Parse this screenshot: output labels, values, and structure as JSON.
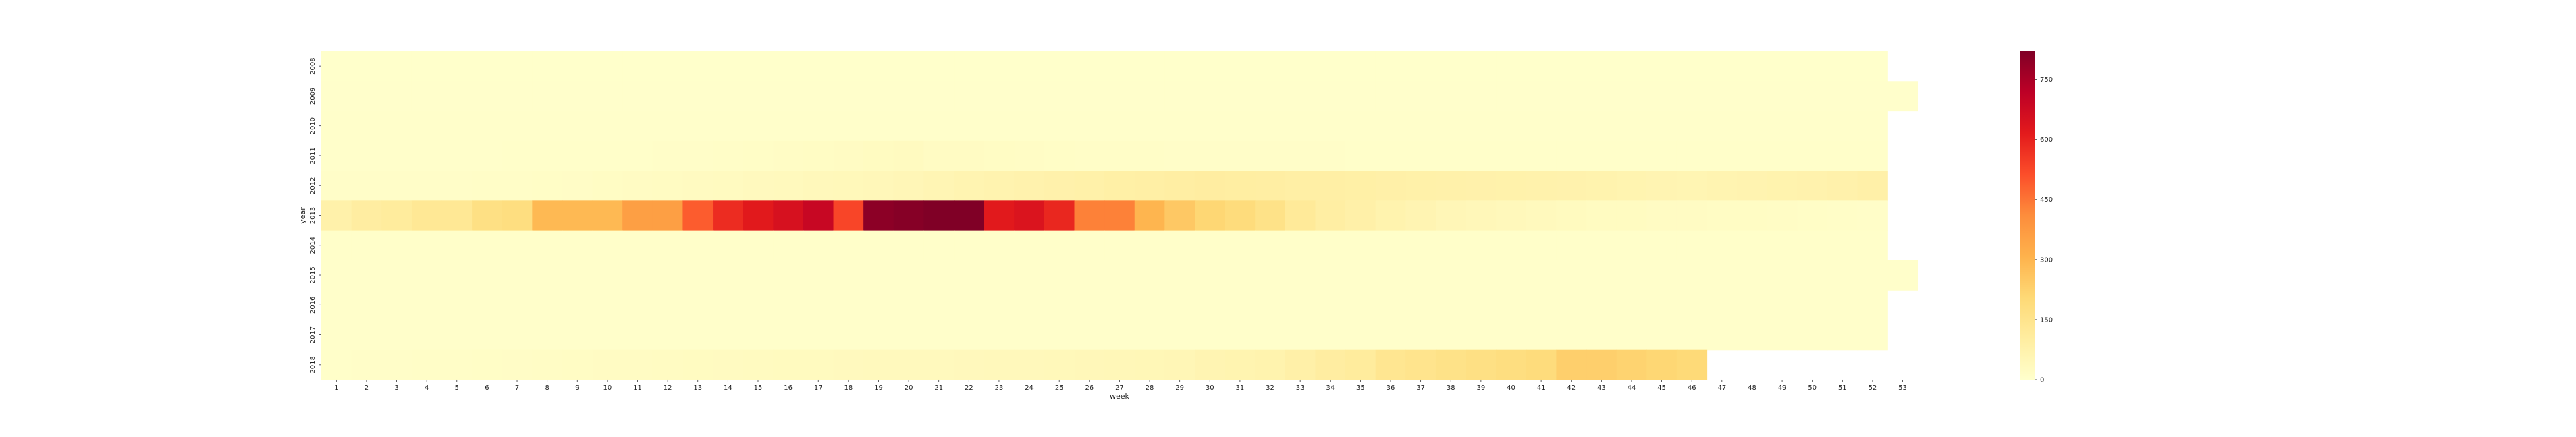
{
  "chart_data": {
    "type": "heatmap",
    "title": "",
    "xlabel": "week",
    "ylabel": "year",
    "x_categories": [
      "1",
      "2",
      "3",
      "4",
      "5",
      "6",
      "7",
      "8",
      "9",
      "10",
      "11",
      "12",
      "13",
      "14",
      "15",
      "16",
      "17",
      "18",
      "19",
      "20",
      "21",
      "22",
      "23",
      "24",
      "25",
      "26",
      "27",
      "28",
      "29",
      "30",
      "31",
      "32",
      "33",
      "34",
      "35",
      "36",
      "37",
      "38",
      "39",
      "40",
      "41",
      "42",
      "43",
      "44",
      "45",
      "46",
      "47",
      "48",
      "49",
      "50",
      "51",
      "52",
      "53"
    ],
    "y_categories": [
      "2008",
      "2009",
      "2010",
      "2011",
      "2012",
      "2013",
      "2014",
      "2015",
      "2016",
      "2017",
      "2018"
    ],
    "colorbar": {
      "ticks": [
        0,
        150,
        300,
        450,
        600,
        750
      ],
      "vmin": 0,
      "vmax": 820,
      "colormap": "YlOrRd"
    },
    "legend_position": "right",
    "rows": {
      "2008": [
        2,
        2,
        2,
        2,
        2,
        2,
        2,
        2,
        2,
        2,
        2,
        2,
        2,
        2,
        2,
        2,
        2,
        2,
        2,
        2,
        2,
        2,
        2,
        2,
        2,
        2,
        2,
        2,
        2,
        2,
        2,
        2,
        2,
        2,
        2,
        2,
        2,
        2,
        2,
        2,
        2,
        2,
        2,
        2,
        2,
        2,
        2,
        2,
        2,
        2,
        2,
        2,
        null
      ],
      "2009": [
        3,
        3,
        3,
        3,
        3,
        3,
        3,
        3,
        3,
        3,
        3,
        3,
        3,
        3,
        3,
        3,
        3,
        3,
        3,
        3,
        3,
        3,
        3,
        3,
        3,
        3,
        3,
        3,
        3,
        3,
        3,
        3,
        3,
        3,
        3,
        3,
        3,
        3,
        3,
        3,
        3,
        3,
        3,
        3,
        3,
        3,
        3,
        3,
        3,
        3,
        3,
        3,
        3
      ],
      "2010": [
        4,
        4,
        4,
        4,
        4,
        4,
        4,
        4,
        4,
        4,
        4,
        4,
        4,
        4,
        4,
        4,
        4,
        4,
        4,
        4,
        4,
        4,
        4,
        4,
        4,
        4,
        4,
        4,
        4,
        4,
        4,
        4,
        4,
        4,
        4,
        4,
        4,
        4,
        4,
        4,
        4,
        4,
        4,
        4,
        4,
        4,
        4,
        4,
        4,
        4,
        4,
        4,
        null
      ],
      "2011": [
        4,
        4,
        4,
        5,
        5,
        5,
        6,
        6,
        7,
        8,
        8,
        9,
        10,
        12,
        14,
        16,
        18,
        20,
        25,
        28,
        22,
        20,
        18,
        16,
        14,
        12,
        12,
        12,
        10,
        10,
        10,
        9,
        9,
        9,
        8,
        8,
        8,
        8,
        8,
        8,
        8,
        8,
        8,
        8,
        8,
        8,
        8,
        8,
        8,
        8,
        8,
        8,
        null
      ],
      "2012": [
        10,
        10,
        10,
        10,
        10,
        12,
        12,
        14,
        15,
        18,
        20,
        24,
        26,
        28,
        32,
        36,
        40,
        42,
        45,
        50,
        55,
        62,
        68,
        72,
        78,
        82,
        88,
        92,
        95,
        100,
        98,
        95,
        92,
        90,
        88,
        85,
        82,
        80,
        78,
        76,
        74,
        72,
        70,
        65,
        60,
        58,
        62,
        66,
        70,
        72,
        78,
        85,
        null
      ],
      "2013": [
        80,
        100,
        110,
        130,
        130,
        170,
        180,
        290,
        290,
        290,
        360,
        360,
        490,
        580,
        620,
        650,
        690,
        530,
        800,
        810,
        820,
        820,
        620,
        640,
        590,
        430,
        430,
        300,
        250,
        210,
        190,
        160,
        120,
        95,
        85,
        70,
        60,
        50,
        45,
        40,
        35,
        30,
        25,
        25,
        20,
        20,
        18,
        18,
        16,
        14,
        12,
        10,
        null
      ],
      "2014": [
        8,
        8,
        8,
        8,
        8,
        8,
        8,
        8,
        8,
        8,
        8,
        8,
        8,
        8,
        8,
        8,
        8,
        8,
        8,
        8,
        8,
        8,
        8,
        8,
        8,
        8,
        8,
        8,
        8,
        8,
        8,
        8,
        8,
        8,
        8,
        8,
        8,
        8,
        8,
        8,
        8,
        8,
        8,
        8,
        8,
        8,
        8,
        8,
        8,
        8,
        8,
        8,
        null
      ],
      "2015": [
        5,
        5,
        5,
        5,
        5,
        5,
        5,
        5,
        5,
        5,
        5,
        5,
        5,
        5,
        5,
        5,
        5,
        5,
        5,
        5,
        5,
        5,
        5,
        5,
        5,
        5,
        5,
        5,
        5,
        5,
        5,
        5,
        5,
        5,
        5,
        5,
        5,
        5,
        5,
        5,
        5,
        5,
        5,
        5,
        5,
        5,
        5,
        5,
        5,
        5,
        5,
        5,
        5
      ],
      "2016": [
        4,
        4,
        4,
        4,
        4,
        4,
        4,
        4,
        4,
        4,
        4,
        4,
        4,
        4,
        4,
        4,
        4,
        4,
        4,
        4,
        4,
        4,
        4,
        4,
        4,
        4,
        4,
        4,
        4,
        4,
        4,
        4,
        4,
        4,
        4,
        4,
        4,
        4,
        4,
        4,
        4,
        4,
        4,
        4,
        4,
        4,
        4,
        4,
        4,
        4,
        4,
        4,
        null
      ],
      "2017": [
        4,
        4,
        4,
        4,
        4,
        4,
        4,
        4,
        4,
        4,
        4,
        4,
        4,
        4,
        4,
        4,
        4,
        4,
        4,
        4,
        4,
        4,
        4,
        4,
        4,
        4,
        4,
        4,
        4,
        4,
        4,
        4,
        4,
        4,
        4,
        4,
        4,
        4,
        4,
        4,
        4,
        4,
        4,
        4,
        4,
        4,
        4,
        4,
        4,
        4,
        4,
        4,
        null
      ],
      "2018": [
        8,
        10,
        10,
        12,
        12,
        14,
        15,
        16,
        18,
        20,
        22,
        24,
        25,
        26,
        28,
        30,
        30,
        32,
        34,
        35,
        36,
        38,
        40,
        40,
        42,
        44,
        46,
        48,
        52,
        60,
        65,
        70,
        85,
        100,
        110,
        140,
        150,
        160,
        170,
        180,
        190,
        230,
        230,
        220,
        210,
        200,
        null,
        null,
        null,
        null,
        null,
        null,
        null
      ]
    }
  }
}
